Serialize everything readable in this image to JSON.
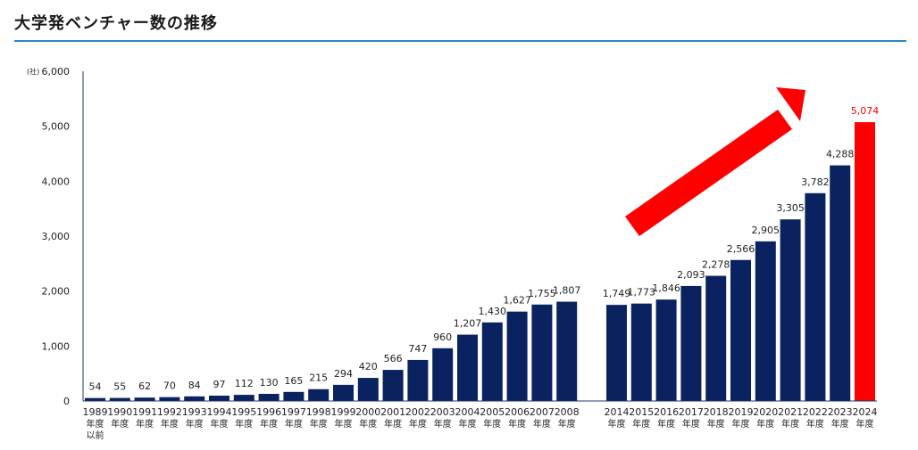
{
  "page": {
    "title": "大学発ベンチャー数の推移"
  },
  "colors": {
    "bar": "#0b2261",
    "highlight": "#ff0000",
    "title_rule": "#2e86c1",
    "axis": "#1f3864"
  },
  "chart_data": {
    "type": "bar",
    "title": "",
    "xlabel": "",
    "ylabel": "",
    "y_unit_label": "(社)",
    "ylim": [
      0,
      6000
    ],
    "y_ticks": [
      0,
      1000,
      2000,
      3000,
      4000,
      5000,
      6000
    ],
    "y_tick_labels": [
      "0",
      "1,000",
      "2,000",
      "3,000",
      "4,000",
      "5,000",
      "6,000"
    ],
    "grid": false,
    "legend": "none",
    "annotation": "trend-up-arrow",
    "categories": [
      "1989 年度 以前",
      "1990 年度",
      "1991 年度",
      "1992 年度",
      "1993 年度",
      "1994 年度",
      "1995 年度",
      "1996 年度",
      "1997 年度",
      "1998 年度",
      "1999 年度",
      "2000 年度",
      "2001 年度",
      "2002 年度",
      "2003 年度",
      "2004 年度",
      "2005 年度",
      "2006 年度",
      "2007 年度",
      "2008 年度",
      "2014 年度",
      "2015 年度",
      "2016 年度",
      "2017 年度",
      "2018 年度",
      "2019 年度",
      "2020 年度",
      "2021 年度",
      "2022 年度",
      "2023 年度",
      "2024 年度"
    ],
    "category_lines": [
      [
        "1989",
        "年度",
        "以前"
      ],
      [
        "1990",
        "年度"
      ],
      [
        "1991",
        "年度"
      ],
      [
        "1992",
        "年度"
      ],
      [
        "1993",
        "年度"
      ],
      [
        "1994",
        "年度"
      ],
      [
        "1995",
        "年度"
      ],
      [
        "1996",
        "年度"
      ],
      [
        "1997",
        "年度"
      ],
      [
        "1998",
        "年度"
      ],
      [
        "1999",
        "年度"
      ],
      [
        "2000",
        "年度"
      ],
      [
        "2001",
        "年度"
      ],
      [
        "2002",
        "年度"
      ],
      [
        "2003",
        "年度"
      ],
      [
        "2004",
        "年度"
      ],
      [
        "2005",
        "年度"
      ],
      [
        "2006",
        "年度"
      ],
      [
        "2007",
        "年度"
      ],
      [
        "2008",
        "年度"
      ],
      [
        "2014",
        "年度"
      ],
      [
        "2015",
        "年度"
      ],
      [
        "2016",
        "年度"
      ],
      [
        "2017",
        "年度"
      ],
      [
        "2018",
        "年度"
      ],
      [
        "2019",
        "年度"
      ],
      [
        "2020",
        "年度"
      ],
      [
        "2021",
        "年度"
      ],
      [
        "2022",
        "年度"
      ],
      [
        "2023",
        "年度"
      ],
      [
        "2024",
        "年度"
      ]
    ],
    "values": [
      54,
      55,
      62,
      70,
      84,
      97,
      112,
      130,
      165,
      215,
      294,
      420,
      566,
      747,
      960,
      1207,
      1430,
      1627,
      1755,
      1807,
      1749,
      1773,
      1846,
      2093,
      2278,
      2566,
      2905,
      3305,
      3782,
      4288,
      5074
    ],
    "value_labels": [
      "54",
      "55",
      "62",
      "70",
      "84",
      "97",
      "112",
      "130",
      "165",
      "215",
      "294",
      "420",
      "566",
      "747",
      "960",
      "1,207",
      "1,430",
      "1,627",
      "1,755",
      "1,807",
      "1,749",
      "1,773",
      "1,846",
      "2,093",
      "2,278",
      "2,566",
      "2,905",
      "3,305",
      "3,782",
      "4,288",
      "5,074"
    ],
    "highlight_index": 30,
    "gap_after_index": 19
  }
}
